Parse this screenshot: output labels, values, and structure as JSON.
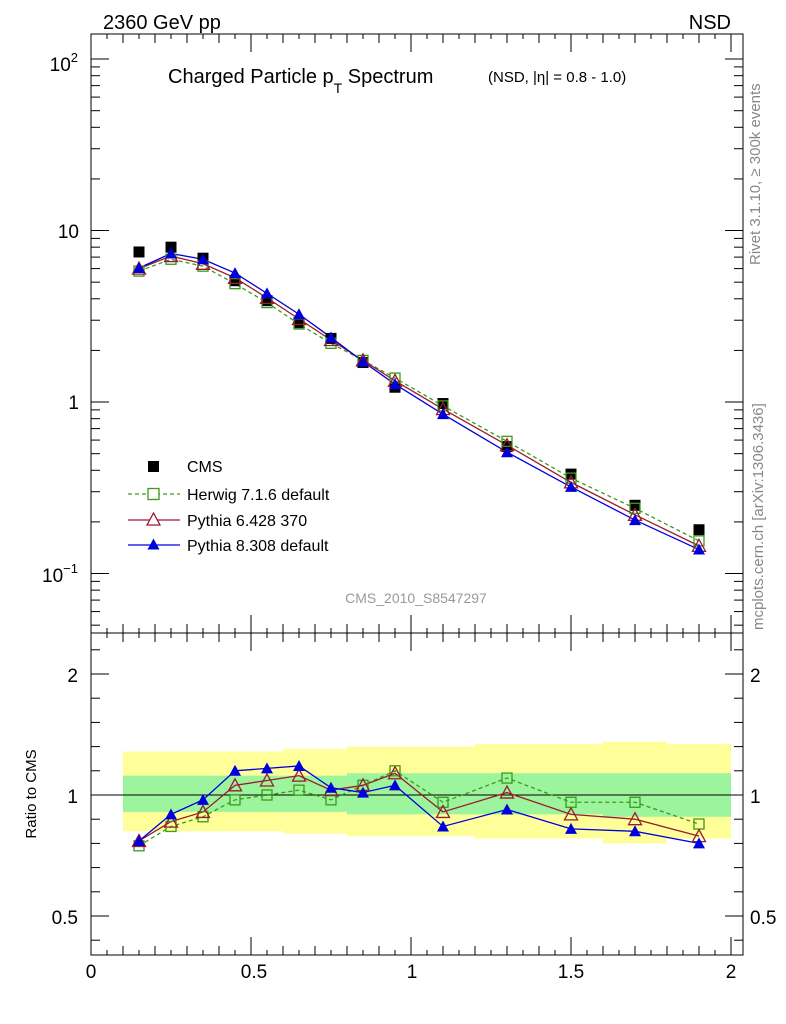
{
  "header": {
    "energy_label": "2360 GeV pp",
    "process_label": "NSD"
  },
  "side_labels": {
    "rivet": "Rivet 3.1.10, ≥ 300k events",
    "mcplots": "mcplots.cern.ch [arXiv:1306.3436]"
  },
  "chart_data": [
    {
      "type": "line",
      "title_main": "Charged Particle p",
      "title_sub": "T",
      "title_tail": " Spectrum",
      "title_note": "(NSD, |η| = 0.8 - 1.0)",
      "watermark": "CMS_2010_S8547297",
      "yscale": "log",
      "ylim": [
        0.045,
        140
      ],
      "xlim": [
        0,
        2
      ],
      "y_ticks": [
        {
          "label_base": "10",
          "label_exp": "2"
        },
        {
          "label_base": "10",
          "label_exp": ""
        },
        {
          "label_base": "1",
          "label_exp": ""
        },
        {
          "label_base": "10",
          "label_exp": "−1"
        }
      ],
      "legend_position": "bottom-left",
      "series": [
        {
          "name": "CMS",
          "color": "#000000",
          "style": "points",
          "marker": "filled-square",
          "x": [
            0.15,
            0.25,
            0.35,
            0.45,
            0.55,
            0.65,
            0.75,
            0.85,
            0.95,
            1.1,
            1.3,
            1.5,
            1.7,
            1.9
          ],
          "y": [
            7.5,
            8.0,
            6.9,
            5.1,
            3.9,
            2.9,
            2.35,
            1.7,
            1.22,
            0.98,
            0.55,
            0.38,
            0.25,
            0.18
          ]
        },
        {
          "name": "Herwig 7.1.6 default",
          "color": "#3a9a1a",
          "style": "dashed",
          "marker": "open-square",
          "x": [
            0.15,
            0.25,
            0.35,
            0.45,
            0.55,
            0.65,
            0.75,
            0.85,
            0.95,
            1.1,
            1.3,
            1.5,
            1.7,
            1.9
          ],
          "y": [
            5.8,
            6.8,
            6.2,
            4.9,
            3.8,
            2.85,
            2.2,
            1.75,
            1.38,
            0.95,
            0.59,
            0.36,
            0.24,
            0.155
          ]
        },
        {
          "name": "Pythia 6.428 370",
          "color": "#9b1b30",
          "style": "solid",
          "marker": "open-triangle",
          "x": [
            0.15,
            0.25,
            0.35,
            0.45,
            0.55,
            0.65,
            0.75,
            0.85,
            0.95,
            1.1,
            1.3,
            1.5,
            1.7,
            1.9
          ],
          "y": [
            6.0,
            7.1,
            6.4,
            5.3,
            4.05,
            3.05,
            2.3,
            1.75,
            1.33,
            0.91,
            0.56,
            0.34,
            0.22,
            0.145
          ]
        },
        {
          "name": "Pythia 8.308 default",
          "color": "#0000dd",
          "style": "solid",
          "marker": "filled-triangle",
          "x": [
            0.15,
            0.25,
            0.35,
            0.45,
            0.55,
            0.65,
            0.75,
            0.85,
            0.95,
            1.1,
            1.3,
            1.5,
            1.7,
            1.9
          ],
          "y": [
            6.05,
            7.35,
            6.8,
            5.65,
            4.3,
            3.25,
            2.38,
            1.72,
            1.27,
            0.85,
            0.51,
            0.32,
            0.205,
            0.138
          ]
        }
      ]
    },
    {
      "type": "line",
      "ylabel": "Ratio to CMS",
      "ylim": [
        0.35,
        2.3
      ],
      "xlim": [
        0,
        2
      ],
      "reference_line": 1,
      "y_ticks": [
        "0.5",
        "1",
        "2"
      ],
      "x_ticks": [
        "0",
        "0.5",
        "1",
        "1.5",
        "2"
      ],
      "bands": {
        "inner_color": "#9cf59c",
        "outer_color": "#ffff99",
        "bins": [
          {
            "x0": 0.1,
            "x1": 0.2,
            "inner": [
              0.93,
              1.08
            ],
            "outer": [
              0.85,
              1.18
            ]
          },
          {
            "x0": 0.2,
            "x1": 0.3,
            "inner": [
              0.93,
              1.08
            ],
            "outer": [
              0.85,
              1.18
            ]
          },
          {
            "x0": 0.3,
            "x1": 0.4,
            "inner": [
              0.93,
              1.08
            ],
            "outer": [
              0.85,
              1.18
            ]
          },
          {
            "x0": 0.4,
            "x1": 0.5,
            "inner": [
              0.93,
              1.08
            ],
            "outer": [
              0.85,
              1.18
            ]
          },
          {
            "x0": 0.5,
            "x1": 0.6,
            "inner": [
              0.93,
              1.08
            ],
            "outer": [
              0.85,
              1.18
            ]
          },
          {
            "x0": 0.6,
            "x1": 0.7,
            "inner": [
              0.93,
              1.08
            ],
            "outer": [
              0.84,
              1.19
            ]
          },
          {
            "x0": 0.7,
            "x1": 0.8,
            "inner": [
              0.93,
              1.08
            ],
            "outer": [
              0.84,
              1.19
            ]
          },
          {
            "x0": 0.8,
            "x1": 0.9,
            "inner": [
              0.92,
              1.09
            ],
            "outer": [
              0.83,
              1.2
            ]
          },
          {
            "x0": 0.9,
            "x1": 1.0,
            "inner": [
              0.92,
              1.09
            ],
            "outer": [
              0.83,
              1.2
            ]
          },
          {
            "x0": 1.0,
            "x1": 1.2,
            "inner": [
              0.92,
              1.09
            ],
            "outer": [
              0.83,
              1.2
            ]
          },
          {
            "x0": 1.2,
            "x1": 1.4,
            "inner": [
              0.92,
              1.09
            ],
            "outer": [
              0.82,
              1.21
            ]
          },
          {
            "x0": 1.4,
            "x1": 1.6,
            "inner": [
              0.92,
              1.09
            ],
            "outer": [
              0.82,
              1.21
            ]
          },
          {
            "x0": 1.6,
            "x1": 1.8,
            "inner": [
              0.91,
              1.09
            ],
            "outer": [
              0.8,
              1.22
            ]
          },
          {
            "x0": 1.8,
            "x1": 2.0,
            "inner": [
              0.91,
              1.09
            ],
            "outer": [
              0.82,
              1.21
            ]
          }
        ]
      },
      "series": [
        {
          "name": "CMS",
          "color": "#000000",
          "style": "points",
          "marker": "none",
          "x": [
            0.15,
            0.25,
            0.35,
            0.45,
            0.55,
            0.65,
            0.75,
            0.85,
            0.95,
            1.1,
            1.3,
            1.5,
            1.7,
            1.9
          ],
          "y": [
            1,
            1,
            1,
            1,
            1,
            1,
            1,
            1,
            1,
            1,
            1,
            1,
            1,
            1
          ]
        },
        {
          "name": "Herwig 7.1.6 default",
          "color": "#3a9a1a",
          "style": "dashed",
          "marker": "open-square",
          "x": [
            0.15,
            0.25,
            0.35,
            0.45,
            0.55,
            0.65,
            0.75,
            0.85,
            0.95,
            1.1,
            1.3,
            1.5,
            1.7,
            1.9
          ],
          "y": [
            0.79,
            0.87,
            0.91,
            0.98,
            1.0,
            1.02,
            0.98,
            1.04,
            1.1,
            0.97,
            1.07,
            0.97,
            0.97,
            0.88
          ]
        },
        {
          "name": "Pythia 6.428 370",
          "color": "#9b1b30",
          "style": "solid",
          "marker": "open-triangle",
          "x": [
            0.15,
            0.25,
            0.35,
            0.45,
            0.55,
            0.65,
            0.75,
            0.85,
            0.95,
            1.1,
            1.3,
            1.5,
            1.7,
            1.9
          ],
          "y": [
            0.81,
            0.89,
            0.93,
            1.04,
            1.06,
            1.08,
            1.02,
            1.04,
            1.09,
            0.93,
            1.01,
            0.92,
            0.9,
            0.83
          ]
        },
        {
          "name": "Pythia 8.308 default",
          "color": "#0000dd",
          "style": "solid",
          "marker": "filled-triangle",
          "x": [
            0.15,
            0.25,
            0.35,
            0.45,
            0.55,
            0.65,
            0.75,
            0.85,
            0.95,
            1.1,
            1.3,
            1.5,
            1.7,
            1.9
          ],
          "y": [
            0.81,
            0.92,
            0.98,
            1.1,
            1.11,
            1.12,
            1.03,
            1.01,
            1.04,
            0.87,
            0.94,
            0.86,
            0.85,
            0.8
          ]
        }
      ]
    }
  ]
}
